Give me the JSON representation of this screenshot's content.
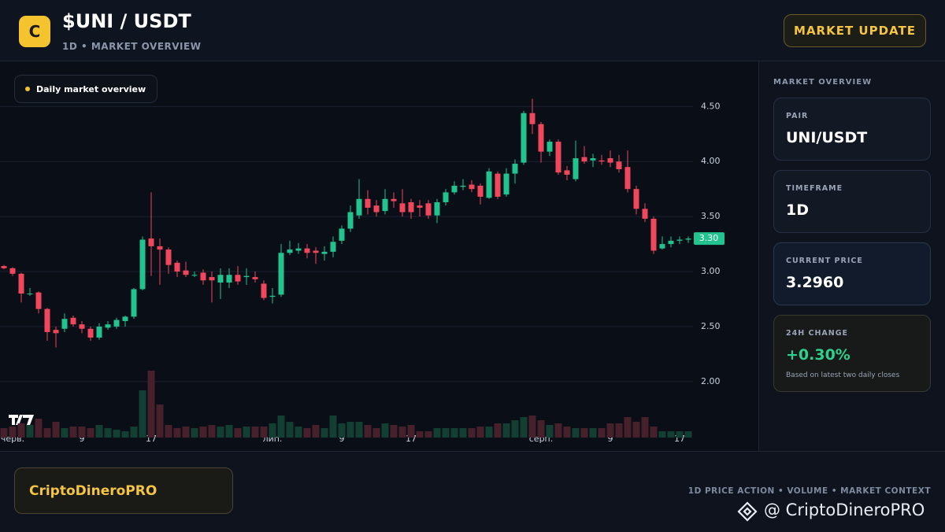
{
  "header": {
    "logo": "C",
    "title": "$UNI / USDT",
    "subtitle": "1D • MARKET OVERVIEW",
    "button": "MARKET UPDATE"
  },
  "chart_data": {
    "type": "candlestick",
    "overlay_label": "Daily market overview",
    "categories": [
      null,
      "черв.",
      null,
      null,
      null,
      null,
      null,
      null,
      null,
      "9",
      null,
      null,
      null,
      null,
      null,
      null,
      null,
      "17",
      null,
      null,
      null,
      null,
      null,
      null,
      null,
      null,
      null,
      null,
      null,
      null,
      null,
      "лип.",
      null,
      null,
      null,
      null,
      null,
      null,
      null,
      "9",
      null,
      null,
      null,
      null,
      null,
      null,
      null,
      "17",
      null,
      null,
      null,
      null,
      null,
      null,
      null,
      null,
      null,
      null,
      null,
      null,
      null,
      null,
      "серп.",
      null,
      null,
      null,
      null,
      null,
      null,
      null,
      "9",
      null,
      null,
      null,
      null,
      null,
      null,
      null,
      "17",
      null
    ],
    "open": [
      3.05,
      3.03,
      2.98,
      2.8,
      2.81,
      2.66,
      2.47,
      2.48,
      2.58,
      2.52,
      2.48,
      2.4,
      2.49,
      2.5,
      2.55,
      2.59,
      2.84,
      3.3,
      3.23,
      3.2,
      3.08,
      3.01,
      2.97,
      2.99,
      2.95,
      2.9,
      2.9,
      2.97,
      2.95,
      2.95,
      2.89,
      2.77,
      2.79,
      3.17,
      3.19,
      3.21,
      3.19,
      3.16,
      3.18,
      3.28,
      3.39,
      3.51,
      3.66,
      3.6,
      3.55,
      3.66,
      3.62,
      3.63,
      3.6,
      3.62,
      3.51,
      3.63,
      3.72,
      3.77,
      3.79,
      3.78,
      3.67,
      3.89,
      3.7,
      3.89,
      3.99,
      4.44,
      4.34,
      4.09,
      4.18,
      3.92,
      3.84,
      4.04,
      4.01,
      4.01,
      4.03,
      4.0,
      3.95,
      3.75,
      3.57,
      3.48,
      3.21,
      3.25,
      3.28,
      3.29
    ],
    "high": [
      3.06,
      3.04,
      2.99,
      2.85,
      2.82,
      2.67,
      2.5,
      2.62,
      2.6,
      2.55,
      2.5,
      2.53,
      2.55,
      2.58,
      2.6,
      2.85,
      3.32,
      3.72,
      3.3,
      3.22,
      3.1,
      3.09,
      3.0,
      3.02,
      3.0,
      3.03,
      3.03,
      3.05,
      3.03,
      3.0,
      2.92,
      2.85,
      3.25,
      3.28,
      3.26,
      3.25,
      3.22,
      3.23,
      3.32,
      3.42,
      3.6,
      3.84,
      3.74,
      3.65,
      3.75,
      3.72,
      3.75,
      3.66,
      3.65,
      3.65,
      3.66,
      3.75,
      3.82,
      3.84,
      3.83,
      3.8,
      3.94,
      3.91,
      3.94,
      4.02,
      4.46,
      4.57,
      4.36,
      4.2,
      4.2,
      3.96,
      4.19,
      4.14,
      4.07,
      4.06,
      4.1,
      4.06,
      4.1,
      3.78,
      3.62,
      3.5,
      3.32,
      3.32,
      3.32,
      3.32
    ],
    "low": [
      3.02,
      2.96,
      2.72,
      2.78,
      2.62,
      2.37,
      2.31,
      2.45,
      2.5,
      2.44,
      2.37,
      2.38,
      2.47,
      2.48,
      2.5,
      2.57,
      2.83,
      2.96,
      2.88,
      2.98,
      2.95,
      2.95,
      2.95,
      2.88,
      2.72,
      2.75,
      2.85,
      2.88,
      2.88,
      2.9,
      2.74,
      2.71,
      2.77,
      3.15,
      3.16,
      3.12,
      3.07,
      3.1,
      3.13,
      3.25,
      3.36,
      3.48,
      3.52,
      3.5,
      3.52,
      3.58,
      3.5,
      3.48,
      3.5,
      3.48,
      3.44,
      3.6,
      3.7,
      3.74,
      3.72,
      3.61,
      3.66,
      3.66,
      3.68,
      3.8,
      3.97,
      4.25,
      3.99,
      4.05,
      3.88,
      3.83,
      3.82,
      3.98,
      3.95,
      3.97,
      3.95,
      3.9,
      3.72,
      3.52,
      3.45,
      3.16,
      3.2,
      3.22,
      3.25,
      3.26
    ],
    "close": [
      3.03,
      2.98,
      2.8,
      2.8,
      2.66,
      2.45,
      2.44,
      2.57,
      2.52,
      2.48,
      2.4,
      2.5,
      2.52,
      2.56,
      2.59,
      2.84,
      3.29,
      3.23,
      3.2,
      3.06,
      3.0,
      2.97,
      2.97,
      2.92,
      2.92,
      2.97,
      2.97,
      2.91,
      2.96,
      2.93,
      2.76,
      2.78,
      3.17,
      3.2,
      3.21,
      3.17,
      3.17,
      3.18,
      3.27,
      3.39,
      3.54,
      3.66,
      3.58,
      3.54,
      3.66,
      3.64,
      3.54,
      3.54,
      3.58,
      3.51,
      3.63,
      3.72,
      3.78,
      3.78,
      3.75,
      3.68,
      3.91,
      3.68,
      3.89,
      3.98,
      4.44,
      4.34,
      4.09,
      4.18,
      3.9,
      3.88,
      4.03,
      4.0,
      4.03,
      4.0,
      3.99,
      3.93,
      3.75,
      3.57,
      3.48,
      3.19,
      3.25,
      3.28,
      3.29,
      3.3
    ],
    "volume": [
      12,
      14,
      18,
      16,
      24,
      12,
      20,
      12,
      14,
      14,
      12,
      16,
      12,
      10,
      8,
      14,
      60,
      85,
      42,
      16,
      12,
      14,
      12,
      14,
      16,
      14,
      16,
      12,
      14,
      14,
      14,
      18,
      28,
      20,
      14,
      12,
      16,
      12,
      28,
      18,
      20,
      20,
      16,
      12,
      18,
      16,
      14,
      16,
      8,
      8,
      12,
      12,
      12,
      12,
      12,
      14,
      14,
      18,
      18,
      22,
      26,
      28,
      22,
      16,
      18,
      14,
      12,
      12,
      12,
      12,
      18,
      18,
      26,
      20,
      26,
      14,
      8,
      8,
      8,
      8
    ],
    "up_color": "#22c38e",
    "down_color": "#f0475c",
    "up_volume_color": "#123f31",
    "down_volume_color": "#46202a",
    "ylim": [
      1.57,
      4.91
    ],
    "yticks": [
      {
        "value": 2,
        "label": "2.00"
      },
      {
        "value": 2.5,
        "label": "2.50"
      },
      {
        "value": 3,
        "label": "3.00"
      },
      {
        "value": 3.5,
        "label": "3.50"
      },
      {
        "value": 4,
        "label": "4.00"
      },
      {
        "value": 4.5,
        "label": "4.50"
      }
    ],
    "last_price": {
      "value": 3.3,
      "label": "3.30"
    },
    "grid": true
  },
  "sidebar": {
    "title": "MARKET OVERVIEW",
    "cards": [
      {
        "label": "PAIR",
        "value": "UNI/USDT"
      },
      {
        "label": "TIMEFRAME",
        "value": "1D"
      },
      {
        "label": "CURRENT PRICE",
        "value": "3.2960"
      },
      {
        "label": "24H CHANGE",
        "value": "+0.30%",
        "note": "Based on latest two daily closes"
      }
    ]
  },
  "footer": {
    "brand": "CriptoDineroPRO",
    "caption": "1D PRICE ACTION • VOLUME • MARKET CONTEXT",
    "watermark": "@ CriptoDineroPRO"
  }
}
